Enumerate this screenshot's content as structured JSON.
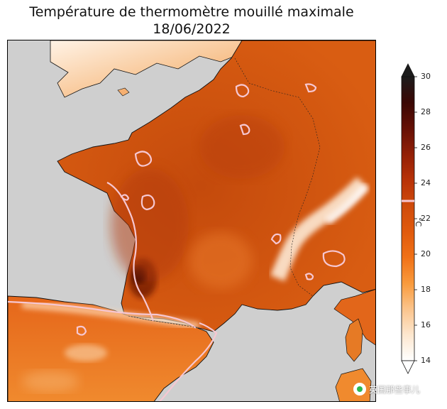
{
  "map": {
    "title_line1": "Température de thermomètre mouillé maximale",
    "title_line2": "18/06/2022",
    "colorbar": {
      "min": 14,
      "max": 30,
      "ticks": [
        "30",
        "28",
        "26",
        "24",
        "22",
        "20",
        "18",
        "16",
        "14"
      ],
      "unit": "°C",
      "marker_value": 23,
      "colors": [
        "#ffffff",
        "#fde7cf",
        "#fbc48c",
        "#f99a3c",
        "#f07117",
        "#e05a0d",
        "#cf4b0b",
        "#b83208",
        "#921f06",
        "#651005",
        "#3a0704",
        "#1c1c1c"
      ]
    },
    "land_color": "#d65a16",
    "sea_color": "#cfcfcf",
    "contour_color": "#f6c7d2",
    "watermark": "英国那些事儿"
  }
}
